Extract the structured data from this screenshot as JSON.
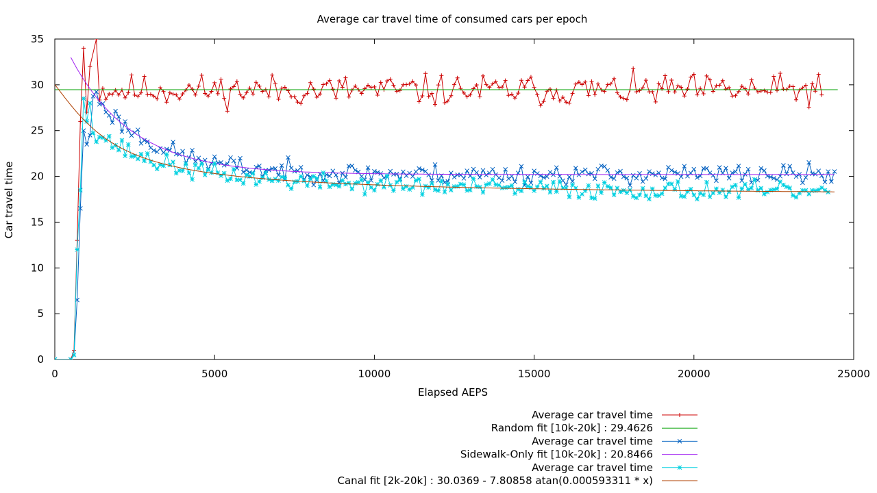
{
  "chart_data": {
    "type": "line",
    "title": "Average car travel time of consumed cars per epoch",
    "xlabel": "Elapsed AEPS",
    "ylabel": "Car travel time",
    "xlim": [
      0,
      25000
    ],
    "ylim": [
      0,
      35
    ],
    "x_ticks": [
      0,
      5000,
      10000,
      15000,
      20000,
      25000
    ],
    "y_ticks": [
      0,
      5,
      10,
      15,
      20,
      25,
      30,
      35
    ],
    "grid": false,
    "legend_position": "bottom-right, outside plot",
    "series": [
      {
        "name": "Average car travel time",
        "kind": "noisy",
        "color": "#cc0000",
        "marker": "plus",
        "x_range": [
          0,
          24000
        ],
        "step": 100,
        "ramp_points": [
          [
            0,
            0
          ],
          [
            500,
            0
          ],
          [
            600,
            1
          ],
          [
            700,
            13
          ],
          [
            800,
            26
          ],
          [
            900,
            34
          ],
          [
            1000,
            27
          ],
          [
            1100,
            32
          ],
          [
            1300,
            35
          ]
        ],
        "steady_mean": 29.4,
        "noise_amplitude": 2.5,
        "seed": 11
      },
      {
        "name": "Random fit [10k-20k] : 29.4626",
        "kind": "constant",
        "color": "#00a000",
        "value": 29.4626,
        "x_range": [
          0,
          24500
        ]
      },
      {
        "name": "Average car travel time",
        "kind": "noisy",
        "color": "#0060c0",
        "marker": "cross",
        "x_range": [
          0,
          24400
        ],
        "step": 100,
        "ramp_points": [
          [
            0,
            0
          ],
          [
            500,
            0
          ],
          [
            600,
            0.5
          ],
          [
            700,
            6.5
          ],
          [
            800,
            16.5
          ],
          [
            900,
            25
          ],
          [
            1000,
            23.5
          ],
          [
            1100,
            24.5
          ]
        ],
        "follow_fit": "sidewalk",
        "noise_amplitude": 1.6,
        "seed": 23
      },
      {
        "name": "Sidewalk-Only fit [10k-20k] : 20.8466",
        "kind": "decay",
        "color": "#a020f0",
        "asymptote": 20.2,
        "offset": 16.6,
        "rate": 0.00052,
        "x_range": [
          500,
          24400
        ]
      },
      {
        "name": "Average car travel time",
        "kind": "noisy",
        "color": "#00d0e0",
        "marker": "star",
        "x_range": [
          0,
          24200
        ],
        "step": 100,
        "ramp_points": [
          [
            0,
            0
          ],
          [
            500,
            0
          ],
          [
            600,
            0.5
          ],
          [
            700,
            12
          ],
          [
            800,
            18.5
          ],
          [
            900,
            28.5
          ],
          [
            1000,
            26
          ],
          [
            1100,
            28
          ]
        ],
        "follow_fit": "canal",
        "noise_amplitude": 1.5,
        "seed": 37
      },
      {
        "name": "Canal fit [2k-20k] : 30.0369 - 7.80858 atan(0.000593311 * x)",
        "kind": "atan",
        "color": "#b04000",
        "a": 30.0369,
        "b": 7.80858,
        "c": 0.000593311,
        "x_range": [
          0,
          24400
        ]
      }
    ]
  }
}
